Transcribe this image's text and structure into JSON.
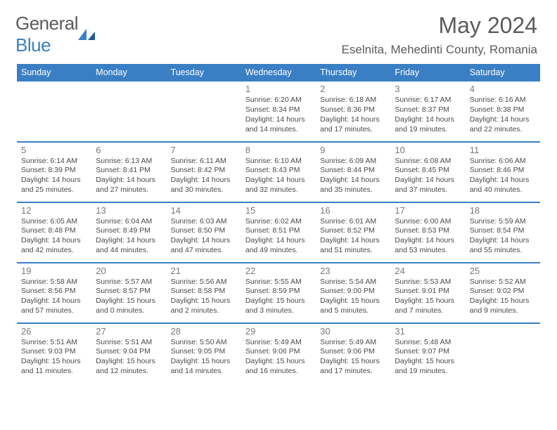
{
  "brand": {
    "part1": "General",
    "part2": "Blue",
    "color_gray": "#5b5b5b",
    "color_blue": "#3a7fc4"
  },
  "title": "May 2024",
  "location": "Eselnita, Mehedinti County, Romania",
  "days": [
    "Sunday",
    "Monday",
    "Tuesday",
    "Wednesday",
    "Thursday",
    "Friday",
    "Saturday"
  ],
  "colors": {
    "header_bg": "#3a7fc4",
    "header_text": "#ffffff",
    "border": "#3a7fc4",
    "daynum": "#7a7a7a",
    "info_text": "#4a4a4a",
    "background": "#ffffff"
  },
  "fonts": {
    "title_size": 32,
    "location_size": 17,
    "th_size": 12.5,
    "daynum_size": 13,
    "info_size": 10.5
  },
  "weeks": [
    [
      null,
      null,
      null,
      {
        "n": "1",
        "sr": "Sunrise: 6:20 AM",
        "ss": "Sunset: 8:34 PM",
        "dl": "Daylight: 14 hours and 14 minutes."
      },
      {
        "n": "2",
        "sr": "Sunrise: 6:18 AM",
        "ss": "Sunset: 8:36 PM",
        "dl": "Daylight: 14 hours and 17 minutes."
      },
      {
        "n": "3",
        "sr": "Sunrise: 6:17 AM",
        "ss": "Sunset: 8:37 PM",
        "dl": "Daylight: 14 hours and 19 minutes."
      },
      {
        "n": "4",
        "sr": "Sunrise: 6:16 AM",
        "ss": "Sunset: 8:38 PM",
        "dl": "Daylight: 14 hours and 22 minutes."
      }
    ],
    [
      {
        "n": "5",
        "sr": "Sunrise: 6:14 AM",
        "ss": "Sunset: 8:39 PM",
        "dl": "Daylight: 14 hours and 25 minutes."
      },
      {
        "n": "6",
        "sr": "Sunrise: 6:13 AM",
        "ss": "Sunset: 8:41 PM",
        "dl": "Daylight: 14 hours and 27 minutes."
      },
      {
        "n": "7",
        "sr": "Sunrise: 6:11 AM",
        "ss": "Sunset: 8:42 PM",
        "dl": "Daylight: 14 hours and 30 minutes."
      },
      {
        "n": "8",
        "sr": "Sunrise: 6:10 AM",
        "ss": "Sunset: 8:43 PM",
        "dl": "Daylight: 14 hours and 32 minutes."
      },
      {
        "n": "9",
        "sr": "Sunrise: 6:09 AM",
        "ss": "Sunset: 8:44 PM",
        "dl": "Daylight: 14 hours and 35 minutes."
      },
      {
        "n": "10",
        "sr": "Sunrise: 6:08 AM",
        "ss": "Sunset: 8:45 PM",
        "dl": "Daylight: 14 hours and 37 minutes."
      },
      {
        "n": "11",
        "sr": "Sunrise: 6:06 AM",
        "ss": "Sunset: 8:46 PM",
        "dl": "Daylight: 14 hours and 40 minutes."
      }
    ],
    [
      {
        "n": "12",
        "sr": "Sunrise: 6:05 AM",
        "ss": "Sunset: 8:48 PM",
        "dl": "Daylight: 14 hours and 42 minutes."
      },
      {
        "n": "13",
        "sr": "Sunrise: 6:04 AM",
        "ss": "Sunset: 8:49 PM",
        "dl": "Daylight: 14 hours and 44 minutes."
      },
      {
        "n": "14",
        "sr": "Sunrise: 6:03 AM",
        "ss": "Sunset: 8:50 PM",
        "dl": "Daylight: 14 hours and 47 minutes."
      },
      {
        "n": "15",
        "sr": "Sunrise: 6:02 AM",
        "ss": "Sunset: 8:51 PM",
        "dl": "Daylight: 14 hours and 49 minutes."
      },
      {
        "n": "16",
        "sr": "Sunrise: 6:01 AM",
        "ss": "Sunset: 8:52 PM",
        "dl": "Daylight: 14 hours and 51 minutes."
      },
      {
        "n": "17",
        "sr": "Sunrise: 6:00 AM",
        "ss": "Sunset: 8:53 PM",
        "dl": "Daylight: 14 hours and 53 minutes."
      },
      {
        "n": "18",
        "sr": "Sunrise: 5:59 AM",
        "ss": "Sunset: 8:54 PM",
        "dl": "Daylight: 14 hours and 55 minutes."
      }
    ],
    [
      {
        "n": "19",
        "sr": "Sunrise: 5:58 AM",
        "ss": "Sunset: 8:56 PM",
        "dl": "Daylight: 14 hours and 57 minutes."
      },
      {
        "n": "20",
        "sr": "Sunrise: 5:57 AM",
        "ss": "Sunset: 8:57 PM",
        "dl": "Daylight: 15 hours and 0 minutes."
      },
      {
        "n": "21",
        "sr": "Sunrise: 5:56 AM",
        "ss": "Sunset: 8:58 PM",
        "dl": "Daylight: 15 hours and 2 minutes."
      },
      {
        "n": "22",
        "sr": "Sunrise: 5:55 AM",
        "ss": "Sunset: 8:59 PM",
        "dl": "Daylight: 15 hours and 3 minutes."
      },
      {
        "n": "23",
        "sr": "Sunrise: 5:54 AM",
        "ss": "Sunset: 9:00 PM",
        "dl": "Daylight: 15 hours and 5 minutes."
      },
      {
        "n": "24",
        "sr": "Sunrise: 5:53 AM",
        "ss": "Sunset: 9:01 PM",
        "dl": "Daylight: 15 hours and 7 minutes."
      },
      {
        "n": "25",
        "sr": "Sunrise: 5:52 AM",
        "ss": "Sunset: 9:02 PM",
        "dl": "Daylight: 15 hours and 9 minutes."
      }
    ],
    [
      {
        "n": "26",
        "sr": "Sunrise: 5:51 AM",
        "ss": "Sunset: 9:03 PM",
        "dl": "Daylight: 15 hours and 11 minutes."
      },
      {
        "n": "27",
        "sr": "Sunrise: 5:51 AM",
        "ss": "Sunset: 9:04 PM",
        "dl": "Daylight: 15 hours and 12 minutes."
      },
      {
        "n": "28",
        "sr": "Sunrise: 5:50 AM",
        "ss": "Sunset: 9:05 PM",
        "dl": "Daylight: 15 hours and 14 minutes."
      },
      {
        "n": "29",
        "sr": "Sunrise: 5:49 AM",
        "ss": "Sunset: 9:06 PM",
        "dl": "Daylight: 15 hours and 16 minutes."
      },
      {
        "n": "30",
        "sr": "Sunrise: 5:49 AM",
        "ss": "Sunset: 9:06 PM",
        "dl": "Daylight: 15 hours and 17 minutes."
      },
      {
        "n": "31",
        "sr": "Sunrise: 5:48 AM",
        "ss": "Sunset: 9:07 PM",
        "dl": "Daylight: 15 hours and 19 minutes."
      },
      null
    ]
  ]
}
